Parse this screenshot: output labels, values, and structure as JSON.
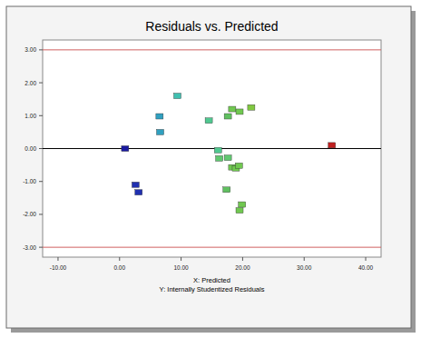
{
  "chart_data": {
    "type": "scatter",
    "title": "Residuals vs. Predicted",
    "x_label": "X: Predicted",
    "y_label": "Y: Internally Studentized Residuals",
    "x": [
      0.9,
      2.6,
      3.1,
      6.5,
      6.6,
      9.4,
      14.5,
      16.0,
      16.2,
      17.6,
      17.6,
      18.3,
      19.5,
      21.4,
      17.4,
      18.3,
      18.9,
      19.4,
      19.9,
      19.5,
      34.5
    ],
    "values": [
      0.0,
      -1.1,
      -1.33,
      0.98,
      0.5,
      1.6,
      0.85,
      -0.05,
      -0.3,
      -0.28,
      0.98,
      1.2,
      1.12,
      1.25,
      -1.25,
      -0.57,
      -0.6,
      -0.52,
      -1.7,
      -1.88,
      0.1
    ],
    "colors": [
      "#1a1aa0",
      "#2030b0",
      "#2030b0",
      "#30a0c0",
      "#30a0c0",
      "#40c0b0",
      "#50c890",
      "#50c890",
      "#60c870",
      "#60c870",
      "#60c060",
      "#70c850",
      "#70c850",
      "#80c840",
      "#60c060",
      "#70c850",
      "#70c850",
      "#70c850",
      "#70c850",
      "#70c850",
      "#c02020"
    ],
    "marker": "square",
    "xlim": [
      -12.5,
      42.5
    ],
    "ylim": [
      -3.3,
      3.3
    ],
    "xticks": [
      {
        "value": -10,
        "label": "-10.00"
      },
      {
        "value": 0,
        "label": "0.00"
      },
      {
        "value": 10,
        "label": "10.00"
      },
      {
        "value": 20,
        "label": "20.00"
      },
      {
        "value": 30,
        "label": "30.00"
      },
      {
        "value": 40,
        "label": "40.00"
      }
    ],
    "yticks": [
      {
        "value": -3,
        "label": "-3.00"
      },
      {
        "value": -2,
        "label": "-2.00"
      },
      {
        "value": -1,
        "label": "-1.00"
      },
      {
        "value": 0,
        "label": "0.00"
      },
      {
        "value": 1,
        "label": "1.00"
      },
      {
        "value": 2,
        "label": "2.00"
      },
      {
        "value": 3,
        "label": "3.00"
      }
    ],
    "reference_lines": [
      {
        "value": 3,
        "color": "#d06060"
      },
      {
        "value": 0,
        "color": "#000000"
      },
      {
        "value": -3,
        "color": "#d06060"
      }
    ],
    "grid": false
  }
}
